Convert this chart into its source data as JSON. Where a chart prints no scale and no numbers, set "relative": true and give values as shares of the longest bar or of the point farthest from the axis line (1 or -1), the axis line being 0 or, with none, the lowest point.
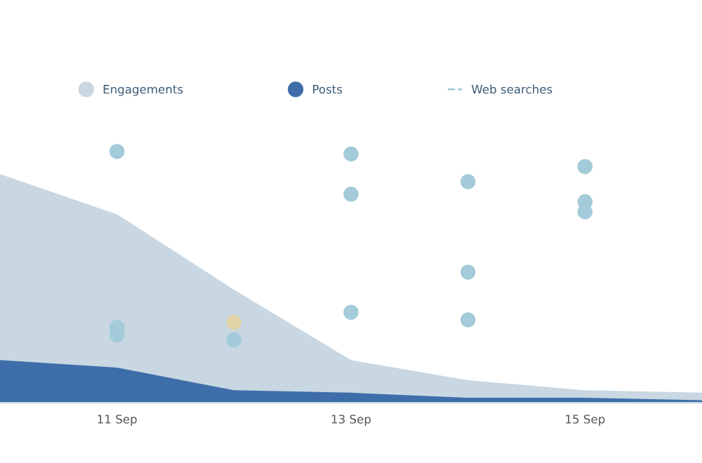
{
  "chart_data": {
    "type": "area",
    "relative": true,
    "legend": "top",
    "grid": false,
    "tick_labels": "x",
    "x": [
      "--09-10",
      "--09-11",
      "--09-12",
      "--09-13",
      "--09-14",
      "--09-15",
      "--09-16"
    ],
    "xlim": [
      "--09-10",
      "--09-16"
    ],
    "xticks": [
      {
        "value": "--09-11",
        "label": "11 Sep"
      },
      {
        "value": "--09-13",
        "label": "13 Sep"
      },
      {
        "value": "--09-15",
        "label": "15 Sep"
      }
    ],
    "series": [
      {
        "name": "Engagements",
        "color": "#c8d7e2",
        "values": [
          0.91,
          0.75,
          0.45,
          0.17,
          0.09,
          0.05,
          0.04
        ]
      },
      {
        "name": "Posts",
        "color": "#3e6ea9",
        "values": [
          0.17,
          0.14,
          0.05,
          0.04,
          0.02,
          0.02,
          0.01
        ]
      },
      {
        "name": "Web searches",
        "type": "scatter",
        "marker": "circle",
        "color": "#a3cbd9",
        "x": [
          "--09-11",
          "--09-11",
          "--09-11",
          "--09-12",
          "--09-13",
          "--09-13",
          "--09-13",
          "--09-14",
          "--09-14",
          "--09-14",
          "--09-15",
          "--09-15",
          "--09-15"
        ],
        "values": [
          1.0,
          0.3,
          0.27,
          0.25,
          0.99,
          0.83,
          0.36,
          0.88,
          0.52,
          0.33,
          0.94,
          0.8,
          0.76
        ]
      },
      {
        "type": "scatter",
        "marker": "circle",
        "color": "#e2d6a8",
        "x": [
          "--09-12"
        ],
        "values": [
          0.32
        ]
      }
    ]
  }
}
